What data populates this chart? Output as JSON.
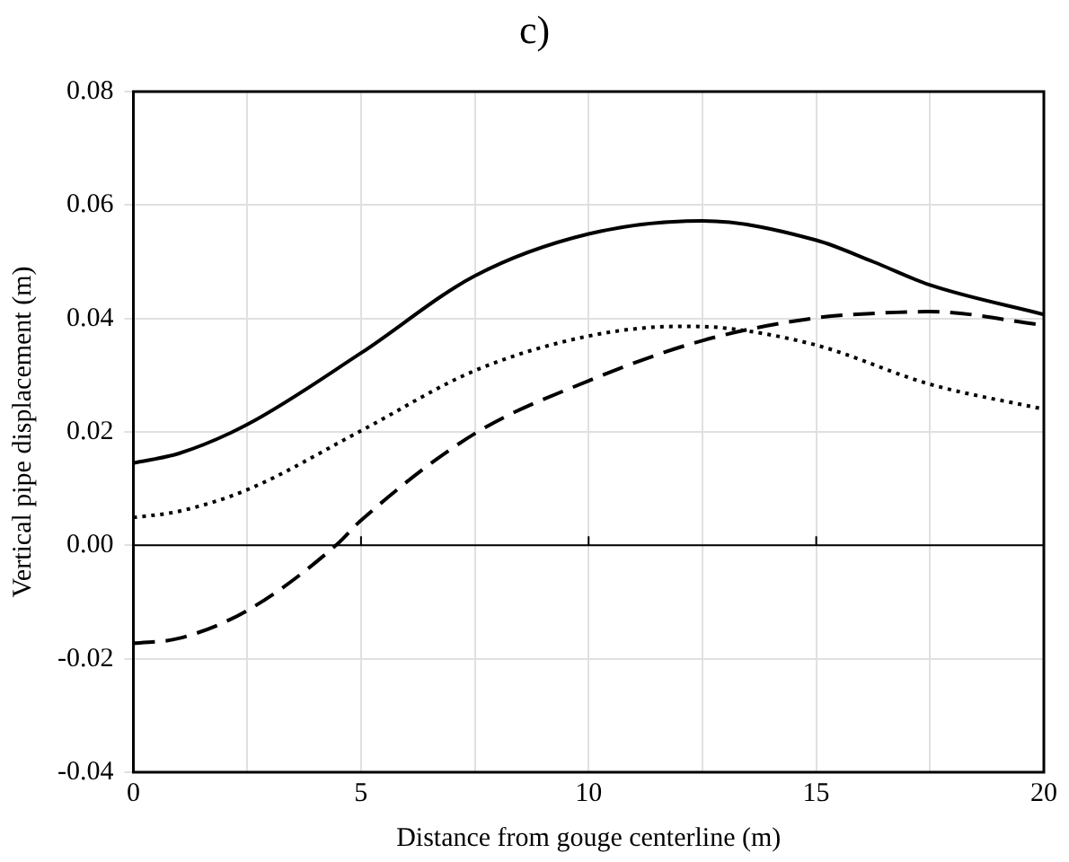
{
  "chart_data": {
    "type": "line",
    "title": "c)",
    "xlabel": "Distance from gouge centerline (m)",
    "ylabel": "Vertical pipe displacement (m)",
    "xlim": [
      0,
      20
    ],
    "xticks": [
      0,
      {
        "value": 2.5,
        "label": null
      },
      5,
      {
        "value": 7.5,
        "label": null
      },
      10,
      {
        "value": 12.5,
        "label": null
      },
      15,
      {
        "value": 17.5,
        "label": null
      },
      20
    ],
    "ylim": [
      -0.04,
      0.08
    ],
    "yticks": [
      {
        "value": -0.04,
        "label": "-0.04"
      },
      {
        "value": -0.02,
        "label": "-0.02"
      },
      {
        "value": 0,
        "label": "0.00"
      },
      {
        "value": 0.02,
        "label": "0.02"
      },
      {
        "value": 0.04,
        "label": "0.04"
      },
      {
        "value": 0.06,
        "label": "0.06"
      },
      {
        "value": 0.08,
        "label": "0.08"
      }
    ],
    "grid": true,
    "legend": false,
    "marker": "none",
    "ref_lines": [
      {
        "axis": "y",
        "value": 0,
        "color": "#000000"
      }
    ],
    "series": [
      {
        "color": "#000000",
        "line_style": "solid",
        "x": [
          0,
          1,
          2.5,
          5,
          7.5,
          10,
          12.5,
          15,
          16.25,
          17.5,
          20
        ],
        "values": [
          0.0145,
          0.0162,
          0.0213,
          0.0339,
          0.0475,
          0.0549,
          0.0572,
          0.0538,
          0.05,
          0.0459,
          0.0407
        ]
      },
      {
        "color": "#000000",
        "line_style": "dotted",
        "x": [
          0,
          1,
          2.5,
          5,
          7.5,
          10,
          12,
          13,
          15,
          17.5,
          20
        ],
        "values": [
          0.0049,
          0.006,
          0.0098,
          0.0202,
          0.0308,
          0.0369,
          0.0386,
          0.0383,
          0.0353,
          0.0284,
          0.024
        ]
      },
      {
        "color": "#000000",
        "line_style": "dashed",
        "x": [
          0,
          1,
          2.5,
          4.45,
          5,
          7.5,
          10,
          12.5,
          15,
          16.5,
          17.5,
          20
        ],
        "values": [
          -0.0173,
          -0.0164,
          -0.0115,
          0,
          0.0044,
          0.0197,
          0.029,
          0.0361,
          0.0401,
          0.041,
          0.0412,
          0.0388
        ]
      }
    ]
  }
}
